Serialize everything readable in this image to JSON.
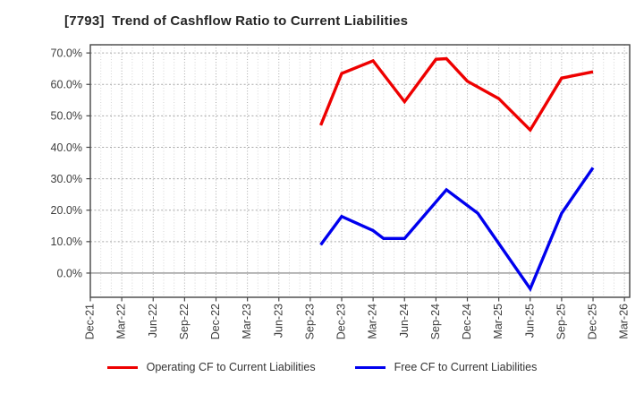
{
  "chart_data": {
    "type": "line",
    "title": "[7793]  Trend of Cashflow Ratio to Current Liabilities",
    "x_tick_labels": [
      "Dec-21",
      "Mar-22",
      "Jun-22",
      "Sep-22",
      "Dec-22",
      "Mar-23",
      "Jun-23",
      "Sep-23",
      "Dec-23",
      "Mar-24",
      "Jun-24",
      "Sep-24",
      "Dec-24",
      "Mar-25",
      "Jun-25",
      "Sep-25",
      "Dec-25",
      "Mar-26"
    ],
    "y_ticks": [
      0,
      10,
      20,
      30,
      40,
      50,
      60,
      70
    ],
    "y_tick_labels": [
      "0.0%",
      "10.0%",
      "20.0%",
      "30.0%",
      "40.0%",
      "50.0%",
      "60.0%",
      "70.0%"
    ],
    "ylim": [
      -7.7,
      72.6
    ],
    "x_axis": {
      "start_month": "Dec-21",
      "end_month": "Mar-26",
      "major_tick_interval_months": 3,
      "minor_grid_interval_months": 1,
      "span_months": 51.5
    },
    "grid": {
      "vertical": "dotted monthly + quarterly",
      "horizontal": "dotted every 10%",
      "zero_line": "solid"
    },
    "legend_position": "bottom-center",
    "series": [
      {
        "name": "Operating CF to Current Liabilities",
        "color": "#ee0000",
        "points": [
          {
            "month": "Oct-23",
            "value": 47.0
          },
          {
            "month": "Dec-23",
            "value": 63.5
          },
          {
            "month": "Mar-24",
            "value": 67.5
          },
          {
            "month": "Jun-24",
            "value": 54.5
          },
          {
            "month": "Sep-24",
            "value": 68.0
          },
          {
            "month": "Oct-24",
            "value": 68.2
          },
          {
            "month": "Dec-24",
            "value": 61.0
          },
          {
            "month": "Mar-25",
            "value": 55.5
          },
          {
            "month": "Jun-25",
            "value": 45.5
          },
          {
            "month": "Sep-25",
            "value": 62.0
          },
          {
            "month": "Dec-25",
            "value": 64.0
          }
        ]
      },
      {
        "name": "Free CF to Current Liabilities",
        "color": "#0000ee",
        "points": [
          {
            "month": "Oct-23",
            "value": 9.0
          },
          {
            "month": "Dec-23",
            "value": 18.0
          },
          {
            "month": "Mar-24",
            "value": 13.5
          },
          {
            "month": "Apr-24",
            "value": 11.0
          },
          {
            "month": "Jun-24",
            "value": 11.0
          },
          {
            "month": "Oct-24",
            "value": 26.5
          },
          {
            "month": "Jan-25",
            "value": 19.0
          },
          {
            "month": "Jun-25",
            "value": -5.0
          },
          {
            "month": "Sep-25",
            "value": 19.0
          },
          {
            "month": "Dec-25",
            "value": 33.5
          }
        ]
      }
    ]
  }
}
